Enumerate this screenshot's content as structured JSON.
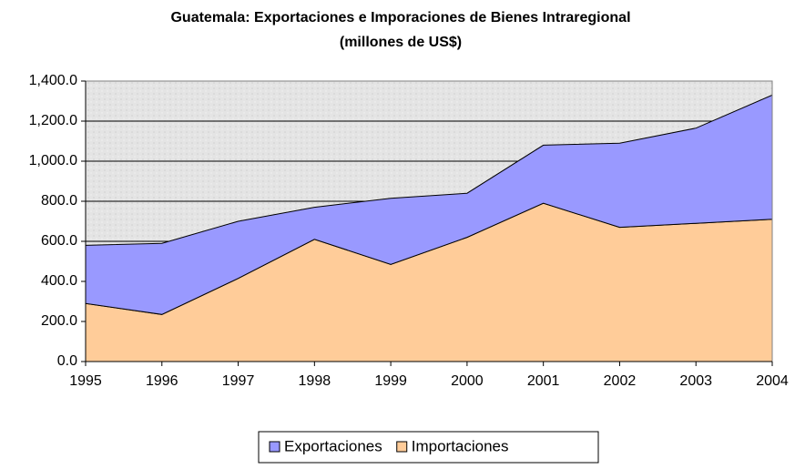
{
  "chart_data": {
    "type": "area",
    "stacked": true,
    "title": "Guatemala: Exportaciones e Imporaciones de Bienes Intraregional",
    "subtitle": "(millones de US$)",
    "categories": [
      "1995",
      "1996",
      "1997",
      "1998",
      "1999",
      "2000",
      "2001",
      "2002",
      "2003",
      "2004"
    ],
    "series": [
      {
        "name": "Exportaciones",
        "color": "#9999ff",
        "values": [
          290,
          355,
          285,
          160,
          330,
          220,
          290,
          420,
          475,
          620
        ]
      },
      {
        "name": "Importaciones",
        "color": "#ffcc99",
        "values": [
          290,
          235,
          415,
          610,
          485,
          620,
          790,
          670,
          690,
          710
        ]
      }
    ],
    "ylim": [
      0,
      1400
    ],
    "yticks": [
      {
        "value": 0,
        "label": "0.0"
      },
      {
        "value": 200,
        "label": "200.0"
      },
      {
        "value": 400,
        "label": "400.0"
      },
      {
        "value": 600,
        "label": "600.0"
      },
      {
        "value": 800,
        "label": "800.0"
      },
      {
        "value": 1000,
        "label": "1,000.0"
      },
      {
        "value": 1200,
        "label": "1,200.0"
      },
      {
        "value": 1400,
        "label": "1,400.0"
      }
    ],
    "grid": true,
    "legend": "bottom"
  }
}
